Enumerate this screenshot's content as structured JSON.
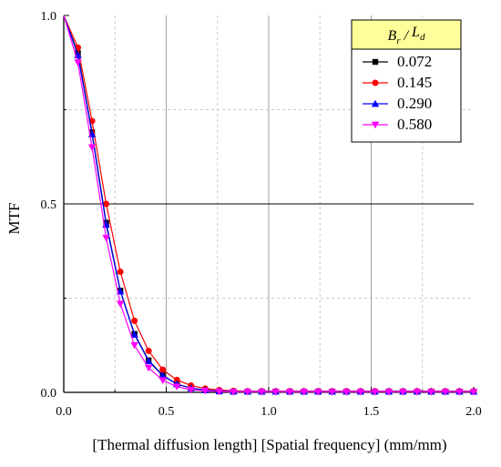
{
  "chart_data": {
    "type": "line",
    "xlabel": "[Thermal diffusion length] [Spatial frequency] (mm/mm)",
    "ylabel": "MTF",
    "xlim": [
      0,
      2
    ],
    "ylim": [
      0,
      1
    ],
    "xticks": [
      "0.0",
      "0.5",
      "1.0",
      "1.5",
      "2.0"
    ],
    "yticks": [
      "0.0",
      "0.5",
      "1.0"
    ],
    "grid": "vertical lines at 0.5, 1.0, 1.5; horizontal line at 0.5; dashed minor grid",
    "legend": {
      "title_main": "B",
      "title_sub1": "r",
      "title_sep": " / ",
      "title_main2": "L",
      "title_sub2": "d",
      "placement": "top-right",
      "title_bg": "#ffff99"
    },
    "x": [
      0,
      0.069,
      0.138,
      0.207,
      0.276,
      0.345,
      0.414,
      0.483,
      0.552,
      0.621,
      0.69,
      0.759,
      0.828,
      0.897,
      0.966,
      1.034,
      1.103,
      1.172,
      1.241,
      1.31,
      1.379,
      1.448,
      1.517,
      1.586,
      1.655,
      1.724,
      1.793,
      1.862,
      1.931,
      2.0
    ],
    "series": [
      {
        "name": "0.072",
        "color": "#000000",
        "marker": "square",
        "values": [
          1.0,
          0.9,
          0.69,
          0.45,
          0.27,
          0.155,
          0.085,
          0.045,
          0.022,
          0.011,
          0.006,
          0.003,
          0.002,
          0.002,
          0.002,
          0.002,
          0.002,
          0.002,
          0.002,
          0.002,
          0.002,
          0.002,
          0.002,
          0.002,
          0.002,
          0.002,
          0.002,
          0.002,
          0.002,
          0.002
        ]
      },
      {
        "name": "0.145",
        "color": "#ff0000",
        "marker": "circle",
        "values": [
          1.0,
          0.915,
          0.72,
          0.5,
          0.32,
          0.19,
          0.11,
          0.06,
          0.033,
          0.018,
          0.01,
          0.006,
          0.004,
          0.003,
          0.003,
          0.003,
          0.003,
          0.003,
          0.003,
          0.003,
          0.003,
          0.003,
          0.003,
          0.003,
          0.003,
          0.003,
          0.003,
          0.003,
          0.003,
          0.003
        ]
      },
      {
        "name": "0.290",
        "color": "#0000ff",
        "marker": "triangle-up",
        "values": [
          1.0,
          0.895,
          0.685,
          0.445,
          0.268,
          0.153,
          0.083,
          0.044,
          0.022,
          0.011,
          0.006,
          0.003,
          0.002,
          0.002,
          0.002,
          0.002,
          0.002,
          0.002,
          0.002,
          0.002,
          0.002,
          0.002,
          0.002,
          0.002,
          0.002,
          0.002,
          0.002,
          0.002,
          0.002,
          0.002
        ]
      },
      {
        "name": "0.580",
        "color": "#ff00ff",
        "marker": "triangle-down",
        "values": [
          1.0,
          0.875,
          0.65,
          0.41,
          0.235,
          0.125,
          0.065,
          0.032,
          0.015,
          0.007,
          0.004,
          0.002,
          0.001,
          0.001,
          0.001,
          0.001,
          0.001,
          0.001,
          0.001,
          0.001,
          0.001,
          0.001,
          0.001,
          0.001,
          0.001,
          0.001,
          0.001,
          0.001,
          0.001,
          0.001
        ]
      }
    ]
  }
}
